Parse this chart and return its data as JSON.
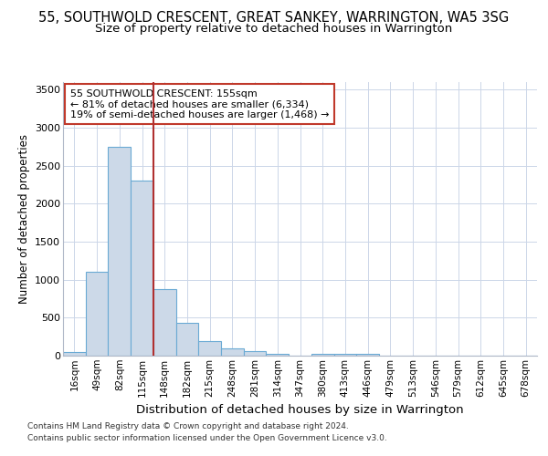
{
  "title1": "55, SOUTHWOLD CRESCENT, GREAT SANKEY, WARRINGTON, WA5 3SG",
  "title2": "Size of property relative to detached houses in Warrington",
  "xlabel": "Distribution of detached houses by size in Warrington",
  "ylabel": "Number of detached properties",
  "categories": [
    "16sqm",
    "49sqm",
    "82sqm",
    "115sqm",
    "148sqm",
    "182sqm",
    "215sqm",
    "248sqm",
    "281sqm",
    "314sqm",
    "347sqm",
    "380sqm",
    "413sqm",
    "446sqm",
    "479sqm",
    "513sqm",
    "546sqm",
    "579sqm",
    "612sqm",
    "645sqm",
    "678sqm"
  ],
  "values": [
    50,
    1100,
    2750,
    2300,
    880,
    430,
    190,
    100,
    55,
    30,
    5,
    30,
    30,
    20,
    0,
    0,
    0,
    0,
    0,
    0,
    0
  ],
  "bar_color": "#ccd9e8",
  "bar_edge_color": "#6aaad4",
  "vline_color": "#b03030",
  "vline_pos": 3.5,
  "annotation_title": "55 SOUTHWOLD CRESCENT: 155sqm",
  "annotation_line1": "← 81% of detached houses are smaller (6,334)",
  "annotation_line2": "19% of semi-detached houses are larger (1,468) →",
  "annotation_box_color": "#c0392b",
  "ylim": [
    0,
    3600
  ],
  "yticks": [
    0,
    500,
    1000,
    1500,
    2000,
    2500,
    3000,
    3500
  ],
  "footnote1": "Contains HM Land Registry data © Crown copyright and database right 2024.",
  "footnote2": "Contains public sector information licensed under the Open Government Licence v3.0.",
  "bg_color": "#ffffff",
  "grid_color": "#ccd6e8",
  "title1_fontsize": 10.5,
  "title2_fontsize": 9.5,
  "ylabel_fontsize": 8.5,
  "xlabel_fontsize": 9.5
}
